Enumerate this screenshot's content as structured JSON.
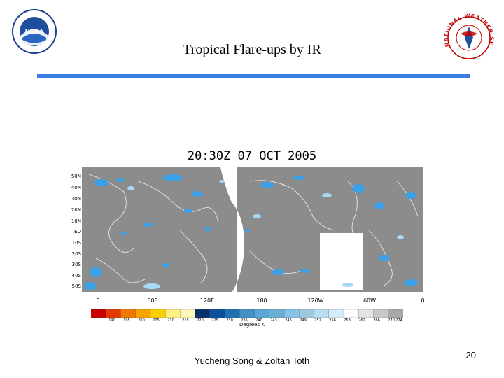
{
  "slide": {
    "title": "Tropical Flare-ups by IR",
    "author": "Yucheng Song & Zoltan Toth",
    "page_number": "20",
    "rule_color": "#3d7fe0"
  },
  "logos": {
    "noaa": {
      "text": "NOAA",
      "icon": "noaa-logo"
    },
    "nws": {
      "text": "NATIONAL WEATHER SERVICE",
      "icon": "nws-logo"
    }
  },
  "map": {
    "title": "20:30Z 07 OCT 2005",
    "lat_labels": [
      "50N",
      "40N",
      "30N",
      "20N",
      "10N",
      "EQ",
      "10S",
      "20S",
      "30S",
      "40S",
      "50S"
    ],
    "lon_labels": [
      "0",
      "60E",
      "120E",
      "180",
      "120W",
      "60W",
      "0"
    ],
    "colors": {
      "land_cloud_free": "#8c8c8c",
      "coastline": "#ffffff",
      "cold_cloud": "#3aa0e8",
      "missing": "#ffffff"
    }
  },
  "colorbar": {
    "units": "Degrees K",
    "labels": [
      "190",
      "195",
      "200",
      "205",
      "210",
      "215",
      "220",
      "225",
      "230",
      "235",
      "240",
      "243",
      "246",
      "249",
      "252",
      "256",
      "258",
      "262",
      "266",
      "270",
      "274"
    ],
    "colors": [
      "#c80000",
      "#e23a00",
      "#f07800",
      "#f8a400",
      "#fcd000",
      "#fff080",
      "#fff8b8",
      "#08306b",
      "#08519c",
      "#2171b5",
      "#4292c6",
      "#5aa6d8",
      "#6baed6",
      "#86c3e8",
      "#9ecae1",
      "#b8dcf0",
      "#d6ecf8",
      "#ffffff",
      "#e4e4e4",
      "#c8c8c8",
      "#a8a8a8"
    ]
  }
}
